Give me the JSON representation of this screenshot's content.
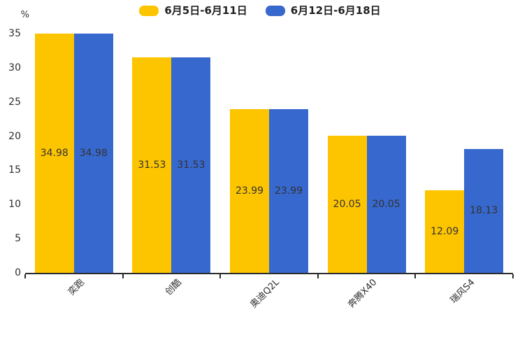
{
  "y_axis_unit": "%",
  "chart_data": {
    "type": "bar",
    "title": "",
    "categories": [
      "奕跑",
      "创酷",
      "奥迪Q2L",
      "奔腾X40",
      "瑞风S4"
    ],
    "series": [
      {
        "name": "6月5日-6月11日",
        "color": "#FDC500",
        "values": [
          34.98,
          31.53,
          23.99,
          20.05,
          12.09
        ]
      },
      {
        "name": "6月12日-6月18日",
        "color": "#3768CE",
        "values": [
          34.98,
          31.53,
          23.99,
          20.05,
          18.13
        ]
      }
    ],
    "value_labels": [
      [
        "34.98",
        "31.53",
        "23.99",
        "20.05",
        "12.09"
      ],
      [
        "34.98",
        "31.53",
        "23.99",
        "20.05",
        "18.13"
      ]
    ],
    "xlabel": "",
    "ylabel": "%",
    "y_ticks": [
      0,
      5,
      10,
      15,
      20,
      25,
      30,
      35
    ],
    "ylim": [
      0,
      35
    ],
    "grid": false,
    "legend_position": "top",
    "label_color": "#333333",
    "axis_color": "#2b2b2b"
  }
}
